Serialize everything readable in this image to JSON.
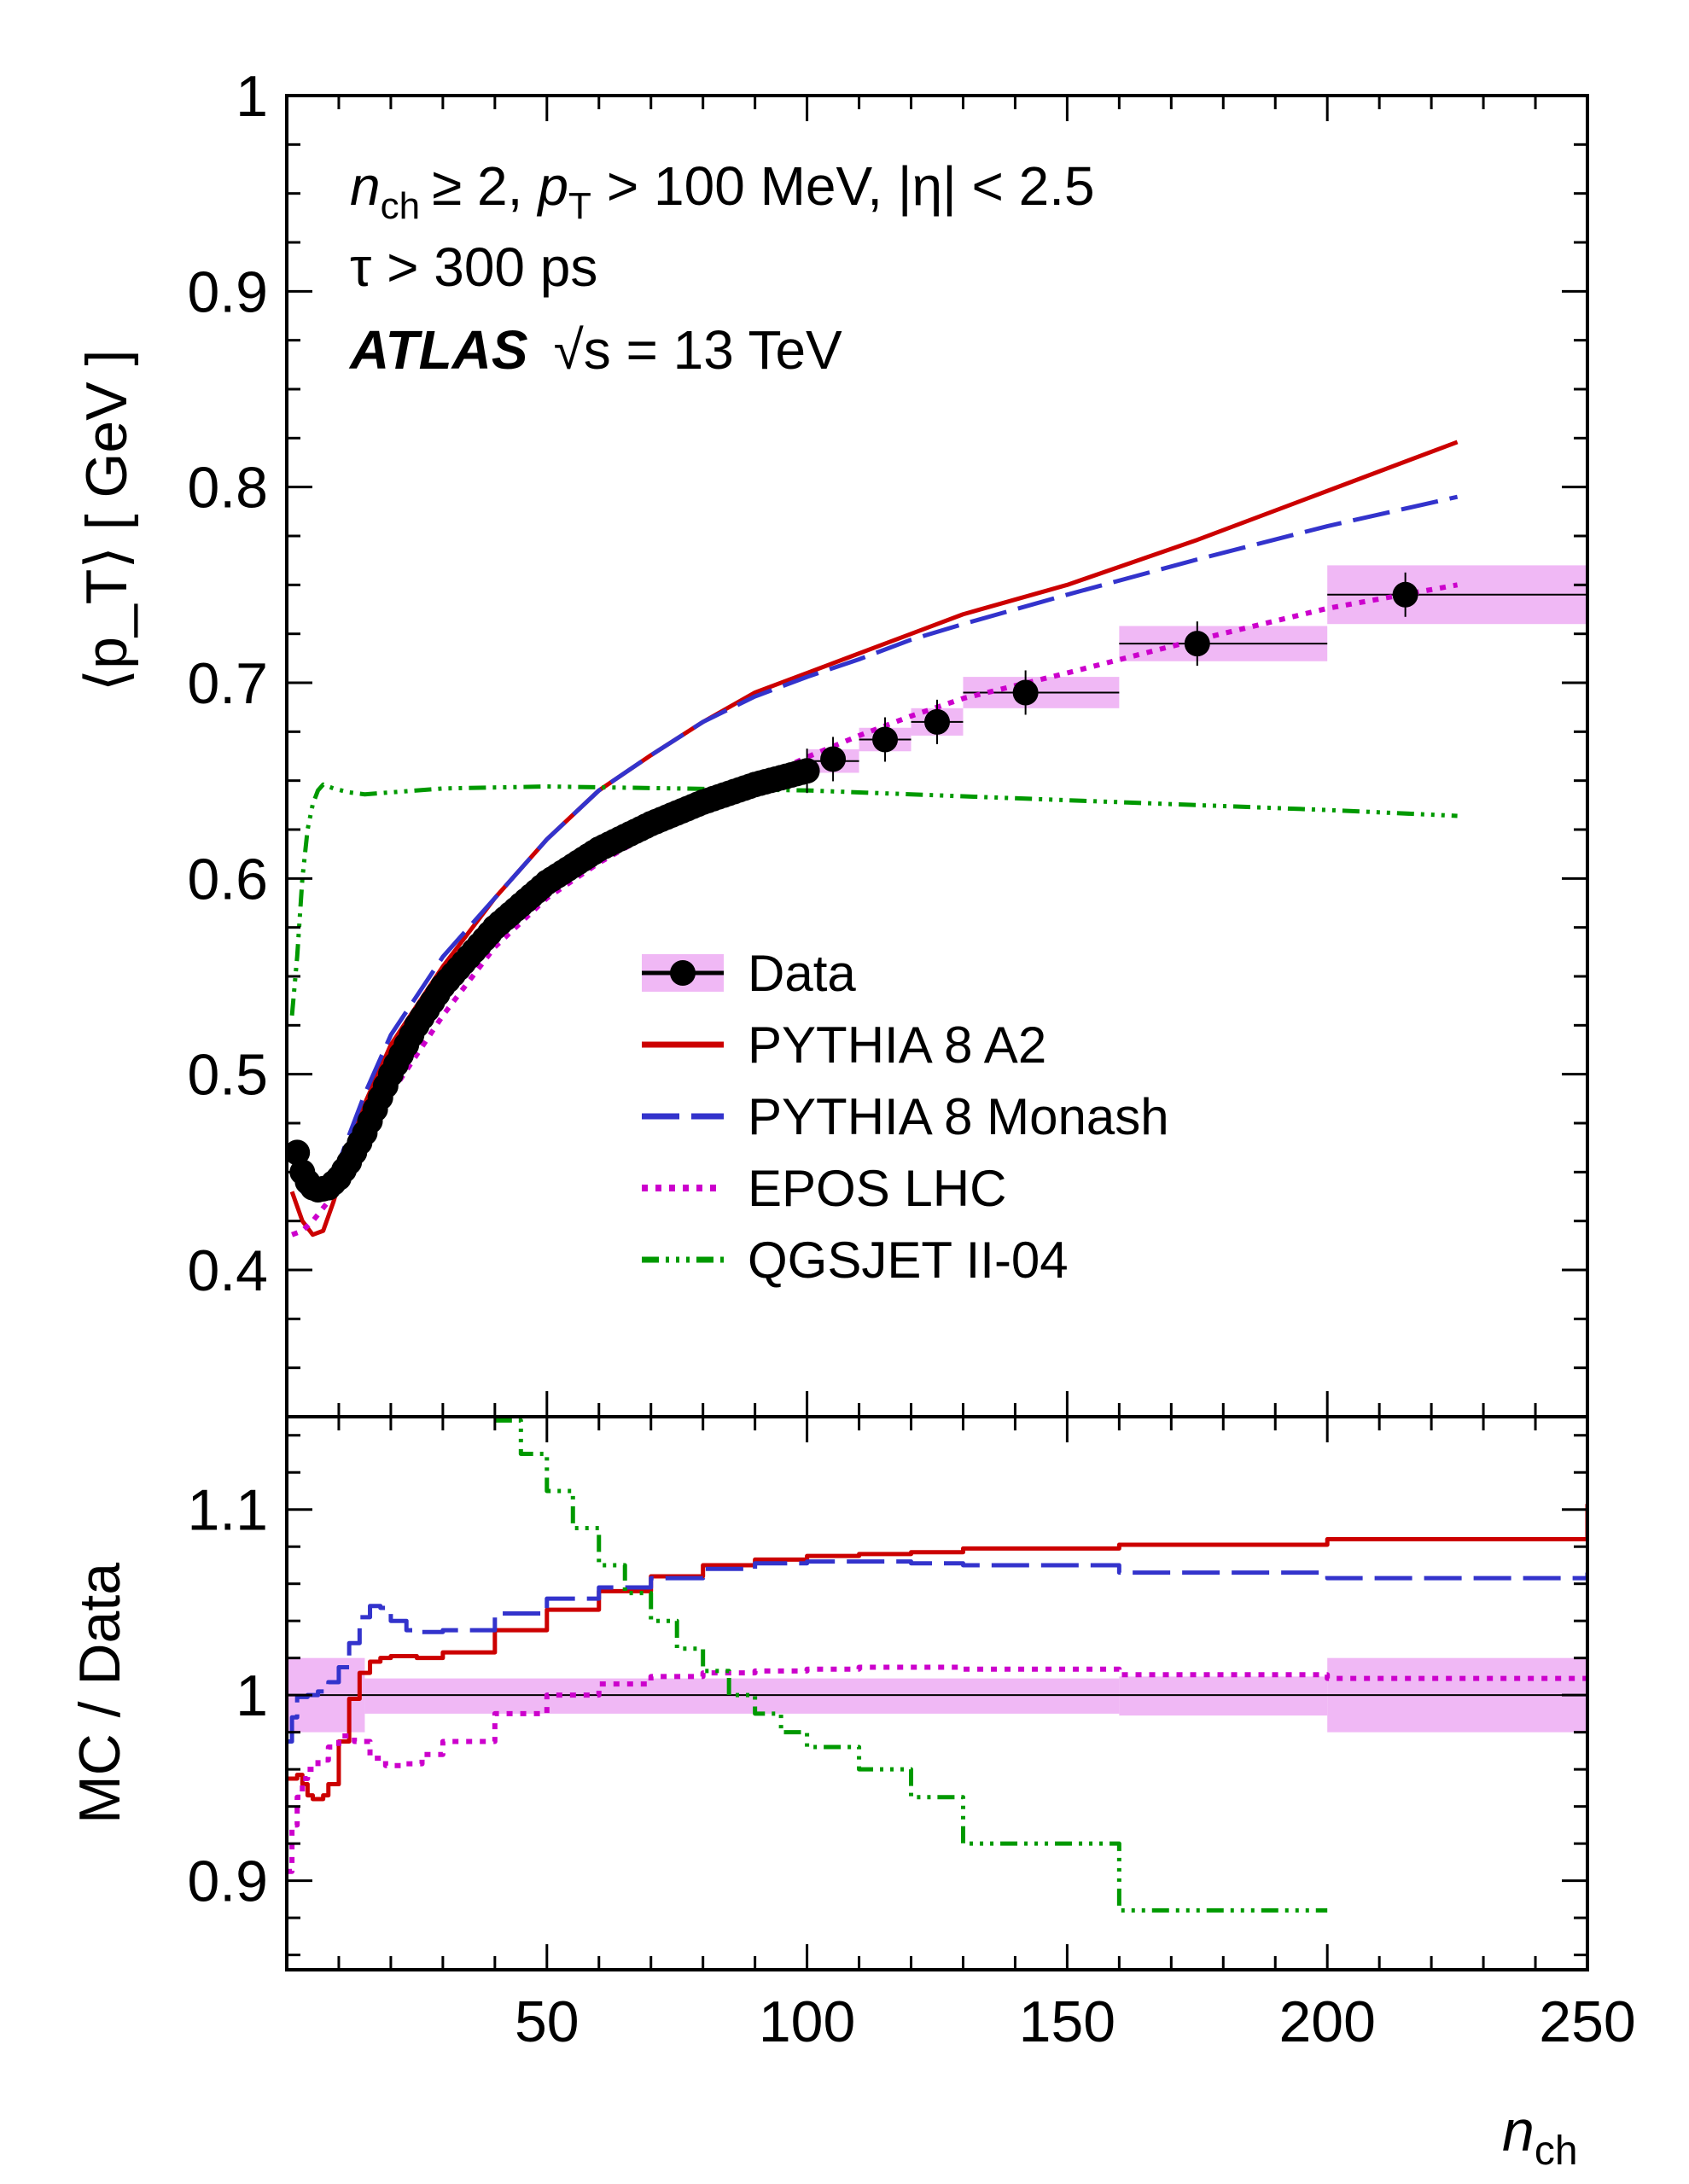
{
  "chart_data": [
    {
      "type": "line",
      "panel": "top",
      "ylabel": "⟨p_T⟩ [ GeV ]",
      "ylim": [
        0.325,
        1.0
      ],
      "xlim": [
        0,
        250
      ],
      "yticks": [
        "0.4",
        "0.5",
        "0.6",
        "0.7",
        "0.8",
        "0.9",
        "1"
      ],
      "annotations": {
        "line1": {
          "n": "n",
          "ch": "ch",
          "ge": "≥ 2,",
          "p": "p",
          "T": "T",
          "rest": "> 100 MeV, |η| < 2.5"
        },
        "line2": "τ > 300 ps",
        "line3": {
          "atlas": "ATLAS",
          "energy": "√s = 13 TeV"
        }
      },
      "data_points": {
        "x": [
          2,
          3,
          4,
          5,
          6,
          8,
          10,
          12,
          15,
          20,
          25,
          30,
          40,
          50,
          60,
          70,
          80,
          90,
          100,
          105,
          115,
          125,
          142,
          175,
          215
        ],
        "y": [
          0.46,
          0.45,
          0.445,
          0.442,
          0.441,
          0.442,
          0.447,
          0.455,
          0.47,
          0.5,
          0.525,
          0.545,
          0.575,
          0.598,
          0.615,
          0.628,
          0.639,
          0.648,
          0.655,
          0.661,
          0.671,
          0.68,
          0.695,
          0.72,
          0.745
        ]
      },
      "data_bands": [
        {
          "x": [
            100,
            110
          ],
          "y": [
            0.655,
            0.665
          ],
          "err": 0.006
        },
        {
          "x": [
            110,
            120
          ],
          "y": [
            0.671,
            0.671
          ],
          "err": 0.006
        },
        {
          "x": [
            120,
            130
          ],
          "y": [
            0.68,
            0.68
          ],
          "err": 0.007
        },
        {
          "x": [
            130,
            160
          ],
          "y": [
            0.695,
            0.695
          ],
          "err": 0.008
        },
        {
          "x": [
            160,
            200
          ],
          "y": [
            0.72,
            0.72
          ],
          "err": 0.009
        },
        {
          "x": [
            200,
            250
          ],
          "y": [
            0.745,
            0.745
          ],
          "err": 0.015
        }
      ],
      "series": [
        {
          "name": "PYTHIA 8 A2",
          "color": "#cc0000",
          "style": "solid",
          "x": [
            1,
            3,
            5,
            7,
            9,
            12,
            15,
            20,
            30,
            40,
            50,
            60,
            70,
            80,
            90,
            100,
            110,
            120,
            130,
            150,
            175,
            200,
            225
          ],
          "y": [
            0.44,
            0.425,
            0.418,
            0.42,
            0.435,
            0.462,
            0.485,
            0.515,
            0.555,
            0.59,
            0.62,
            0.645,
            0.663,
            0.68,
            0.695,
            0.705,
            0.715,
            0.725,
            0.735,
            0.75,
            0.773,
            0.798,
            0.823
          ]
        },
        {
          "name": "PYTHIA 8 Monash",
          "color": "#3333cc",
          "style": "dash",
          "x": [
            1,
            3,
            5,
            7,
            10,
            15,
            20,
            30,
            40,
            50,
            60,
            70,
            80,
            90,
            100,
            110,
            120,
            130,
            150,
            175,
            200,
            225
          ],
          "y": [
            0.45,
            0.44,
            0.442,
            0.445,
            0.455,
            0.49,
            0.52,
            0.56,
            0.59,
            0.62,
            0.645,
            0.663,
            0.68,
            0.693,
            0.703,
            0.712,
            0.722,
            0.73,
            0.745,
            0.763,
            0.78,
            0.795
          ]
        },
        {
          "name": "EPOS LHC",
          "color": "#cc00cc",
          "style": "dot",
          "x": [
            1,
            3,
            5,
            8,
            10,
            15,
            20,
            30,
            40,
            50,
            60,
            70,
            80,
            90,
            100,
            110,
            120,
            130,
            150,
            175,
            200,
            225
          ],
          "y": [
            0.418,
            0.42,
            0.425,
            0.435,
            0.442,
            0.465,
            0.49,
            0.53,
            0.565,
            0.59,
            0.608,
            0.623,
            0.637,
            0.65,
            0.662,
            0.673,
            0.683,
            0.692,
            0.705,
            0.722,
            0.738,
            0.75
          ]
        },
        {
          "name": "QGSJET II-04",
          "color": "#009900",
          "style": "dashdot3",
          "x": [
            1,
            2,
            3,
            4,
            5,
            6,
            7,
            9,
            12,
            15,
            20,
            30,
            50,
            75,
            100,
            130,
            160,
            200,
            225
          ],
          "y": [
            0.53,
            0.56,
            0.6,
            0.625,
            0.638,
            0.645,
            0.648,
            0.646,
            0.644,
            0.643,
            0.644,
            0.646,
            0.647,
            0.646,
            0.645,
            0.642,
            0.639,
            0.635,
            0.632
          ]
        }
      ]
    },
    {
      "type": "line",
      "panel": "bottom",
      "ylabel": "MC / Data",
      "xlabel": {
        "n": "n",
        "sub": "ch"
      },
      "ylim": [
        0.852,
        1.15
      ],
      "xlim": [
        0,
        250
      ],
      "yticks": [
        "0.9",
        "1",
        "1.1"
      ],
      "xticks": [
        "50",
        "100",
        "150",
        "200",
        "250"
      ],
      "xtick_values": [
        50,
        100,
        150,
        200,
        250
      ],
      "ratio_bands": [
        {
          "x": [
            0,
            15
          ],
          "lo": 0.98,
          "hi": 1.02
        },
        {
          "x": [
            15,
            160
          ],
          "lo": 0.99,
          "hi": 1.009
        },
        {
          "x": [
            160,
            200
          ],
          "lo": 0.989,
          "hi": 1.01
        },
        {
          "x": [
            200,
            250
          ],
          "lo": 0.98,
          "hi": 1.02
        }
      ],
      "series": [
        {
          "name": "PYTHIA 8 A2",
          "color": "#cc0000",
          "style": "solid",
          "step": true,
          "x": [
            0,
            2,
            3,
            4,
            5,
            6,
            7,
            8,
            10,
            12,
            14,
            16,
            18,
            20,
            25,
            30,
            40,
            50,
            60,
            70,
            80,
            90,
            100,
            110,
            120,
            130,
            160,
            200,
            250
          ],
          "y": [
            0.955,
            0.957,
            0.952,
            0.946,
            0.944,
            0.944,
            0.946,
            0.952,
            0.975,
            0.998,
            1.012,
            1.018,
            1.02,
            1.021,
            1.02,
            1.023,
            1.035,
            1.046,
            1.056,
            1.064,
            1.07,
            1.073,
            1.075,
            1.076,
            1.077,
            1.079,
            1.081,
            1.084,
            1.103
          ]
        },
        {
          "name": "PYTHIA 8 Monash",
          "color": "#3333cc",
          "style": "dash",
          "step": true,
          "x": [
            0,
            1,
            2,
            4,
            6,
            8,
            10,
            12,
            14,
            16,
            18,
            20,
            23,
            26,
            30,
            40,
            50,
            60,
            70,
            80,
            90,
            100,
            110,
            120,
            130,
            160,
            200,
            250
          ],
          "y": [
            0.975,
            0.988,
            0.999,
            1.0,
            1.002,
            1.007,
            1.015,
            1.028,
            1.042,
            1.048,
            1.047,
            1.04,
            1.035,
            1.034,
            1.035,
            1.044,
            1.052,
            1.058,
            1.063,
            1.068,
            1.071,
            1.072,
            1.072,
            1.071,
            1.07,
            1.066,
            1.063,
            1.066
          ]
        },
        {
          "name": "EPOS LHC",
          "color": "#cc00cc",
          "style": "dot",
          "step": true,
          "x": [
            0,
            1,
            2,
            3,
            4,
            6,
            8,
            10,
            13,
            16,
            19,
            22,
            26,
            30,
            40,
            50,
            60,
            70,
            80,
            90,
            100,
            110,
            120,
            130,
            160,
            200,
            250
          ],
          "y": [
            0.905,
            0.93,
            0.945,
            0.955,
            0.96,
            0.965,
            0.972,
            0.978,
            0.975,
            0.966,
            0.962,
            0.963,
            0.968,
            0.975,
            0.99,
            1.0,
            1.006,
            1.01,
            1.012,
            1.013,
            1.014,
            1.015,
            1.015,
            1.014,
            1.011,
            1.009,
            1.007
          ]
        },
        {
          "name": "QGSJET II-04",
          "color": "#009900",
          "style": "dashdot3",
          "step": true,
          "x": [
            40,
            45,
            50,
            55,
            60,
            65,
            70,
            75,
            80,
            85,
            90,
            95,
            100,
            110,
            120,
            130,
            160,
            200
          ],
          "y": [
            1.148,
            1.13,
            1.11,
            1.09,
            1.07,
            1.055,
            1.04,
            1.025,
            1.013,
            1.0,
            0.99,
            0.98,
            0.972,
            0.96,
            0.945,
            0.92,
            0.884,
            0.884
          ]
        }
      ]
    }
  ],
  "legend": {
    "items": [
      {
        "label": "Data",
        "color": "#000000",
        "style": "marker"
      },
      {
        "label": "PYTHIA 8 A2",
        "color": "#cc0000",
        "style": "solid"
      },
      {
        "label": "PYTHIA 8 Monash",
        "color": "#3333cc",
        "style": "dash"
      },
      {
        "label": "EPOS LHC",
        "color": "#cc00cc",
        "style": "dot"
      },
      {
        "label": "QGSJET II-04",
        "color": "#009900",
        "style": "dashdot3"
      }
    ]
  },
  "colors": {
    "band": "#f0b8f5",
    "data": "#000000"
  }
}
